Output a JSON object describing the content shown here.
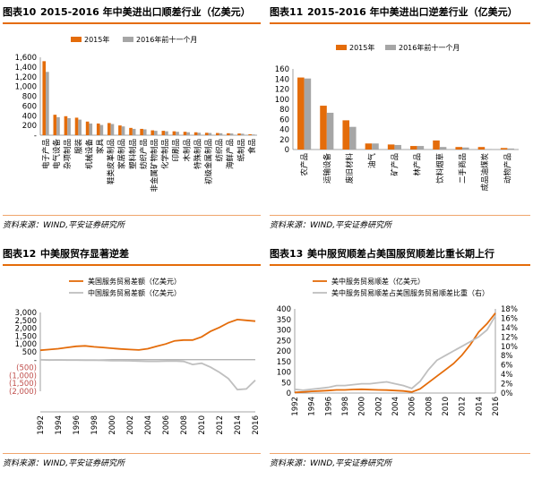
{
  "charts": [
    {
      "label": "图表10",
      "title": "2015-2016 年中美进出口顺差行业（亿美元）",
      "source": "资料来源：WIND,平安证券研究所",
      "chart_data": {
        "type": "bar",
        "categories": [
          "电子产品",
          "电气设备",
          "杂项制品",
          "服装",
          "机械设备",
          "家具",
          "鞋类皮革制品",
          "家居制品",
          "塑料制品",
          "纺织产品",
          "非金属矿物制品",
          "化学制品",
          "印刷品",
          "木制品",
          "特殊制品",
          "初级金属制品",
          "纺织品",
          "海鲜产品",
          "纸制品",
          "食品"
        ],
        "series": [
          {
            "name": "2015年",
            "values": [
              1520,
              420,
              390,
              360,
              280,
              240,
              250,
              200,
              150,
              130,
              100,
              90,
              80,
              70,
              60,
              50,
              45,
              40,
              35,
              20
            ]
          },
          {
            "name": "2016年前十一个月",
            "values": [
              1300,
              370,
              350,
              320,
              240,
              210,
              230,
              180,
              130,
              120,
              90,
              80,
              70,
              60,
              50,
              45,
              40,
              35,
              30,
              15
            ]
          }
        ],
        "ylim": [
          0,
          1600
        ],
        "yticks": [
          "-",
          "200",
          "400",
          "600",
          "800",
          "1,000",
          "1,200",
          "1,400",
          "1,600"
        ],
        "colors": {
          "s2015": "#e46c0a",
          "s2016": "#a6a6a6"
        },
        "legend": "top"
      }
    },
    {
      "label": "图表11",
      "title": "2015-2016 年中美进出口逆差行业（亿美元）",
      "source": "资料来源：WIND,平安证券研究所",
      "chart_data": {
        "type": "bar",
        "categories": [
          "农产品",
          "运输设备",
          "废旧材料",
          "油气",
          "矿产品",
          "林产品",
          "饮料烟草",
          "二手商品",
          "成品油煤炭",
          "动物产品"
        ],
        "series": [
          {
            "name": "2015年",
            "values": [
              143,
              87,
              58,
              12,
              10,
              7,
              18,
              5,
              5,
              3
            ]
          },
          {
            "name": "2016年前十一个月",
            "values": [
              141,
              73,
              45,
              12,
              9,
              7,
              5,
              4,
              1,
              2
            ]
          }
        ],
        "ylim": [
          0,
          160
        ],
        "yticks": [
          "0",
          "20",
          "40",
          "60",
          "80",
          "100",
          "120",
          "140",
          "160"
        ],
        "colors": {
          "s2015": "#e46c0a",
          "s2016": "#a6a6a6"
        },
        "legend": "top"
      }
    },
    {
      "label": "图表12",
      "title": "中美服贸存显著逆差",
      "source": "资料来源：WIND,平安证券研究所",
      "chart_data": {
        "type": "line",
        "x": [
          1992,
          1993,
          1994,
          1995,
          1996,
          1997,
          1998,
          1999,
          2000,
          2001,
          2002,
          2003,
          2004,
          2005,
          2006,
          2007,
          2008,
          2009,
          2010,
          2011,
          2012,
          2013,
          2014,
          2015,
          2016
        ],
        "xticks": [
          "1992",
          "1994",
          "1996",
          "1998",
          "2000",
          "2002",
          "2004",
          "2006",
          "2008",
          "2010",
          "2012",
          "2014",
          "2016"
        ],
        "series": [
          {
            "name": "美国服务贸易差额（亿美元）",
            "values": [
              600,
              650,
              700,
              780,
              850,
              880,
              820,
              780,
              730,
              680,
              650,
              620,
              700,
              850,
              1000,
              1200,
              1250,
              1250,
              1450,
              1800,
              2050,
              2350,
              2550,
              2500,
              2450
            ]
          },
          {
            "name": "中国服务贸易差额（亿美元）",
            "values": [
              0,
              -20,
              -10,
              -20,
              -20,
              -30,
              -30,
              -40,
              -60,
              -60,
              -70,
              -90,
              -100,
              -100,
              -90,
              -80,
              -110,
              -300,
              -220,
              -470,
              -800,
              -1200,
              -1900,
              -1850,
              -1300
            ]
          }
        ],
        "ylim": [
          -2000,
          3000
        ],
        "yticks": [
          "3,000",
          "2,500",
          "2,000",
          "1,500",
          "1,000",
          "500",
          "-",
          "(500)",
          "(1,000)",
          "(1,500)",
          "(2,000)"
        ],
        "colors": {
          "us": "#e46c0a",
          "cn": "#bfbfbf",
          "negtick": "#c0504d"
        },
        "legend": "top-left"
      }
    },
    {
      "label": "图表13",
      "title": "美中服贸顺差占美国服贸顺差比重长期上行",
      "source": "资料来源：WIND,平安证券研究所",
      "chart_data": {
        "type": "line",
        "x": [
          1992,
          1993,
          1994,
          1995,
          1996,
          1997,
          1998,
          1999,
          2000,
          2001,
          2002,
          2003,
          2004,
          2005,
          2006,
          2007,
          2008,
          2009,
          2010,
          2011,
          2012,
          2013,
          2014,
          2015,
          2016
        ],
        "xticks": [
          "1992",
          "1994",
          "1996",
          "1998",
          "2000",
          "2002",
          "2004",
          "2006",
          "2008",
          "2010",
          "2012",
          "2014",
          "2016"
        ],
        "series": [
          {
            "name": "美中服务贸易顺差（亿美元）",
            "axis": "left",
            "values": [
              3,
              5,
              8,
              10,
              12,
              15,
              15,
              17,
              18,
              16,
              15,
              14,
              12,
              10,
              5,
              20,
              50,
              80,
              110,
              140,
              180,
              230,
              290,
              330,
              380
            ]
          },
          {
            "name": "美中服务贸易顺差占美国服务贸易顺差比重（右）",
            "axis": "right",
            "values": [
              0.8,
              0.6,
              0.8,
              1.0,
              1.2,
              1.6,
              1.6,
              1.8,
              2.0,
              2.0,
              2.2,
              2.4,
              2.0,
              1.6,
              1.0,
              2.5,
              5.0,
              7.0,
              8.0,
              9.0,
              10.0,
              11.0,
              12.0,
              13.5,
              16.5
            ]
          }
        ],
        "ylim_left": [
          0,
          400
        ],
        "ylim_right": [
          0,
          18
        ],
        "yticks_left": [
          "400",
          "350",
          "300",
          "250",
          "200",
          "150",
          "100",
          "50",
          "0"
        ],
        "yticks_right": [
          "18%",
          "16%",
          "14%",
          "12%",
          "10%",
          "8%",
          "6%",
          "4%",
          "2%",
          "0%"
        ],
        "colors": {
          "trade": "#e46c0a",
          "share": "#bfbfbf"
        },
        "legend": "top-left"
      }
    }
  ]
}
